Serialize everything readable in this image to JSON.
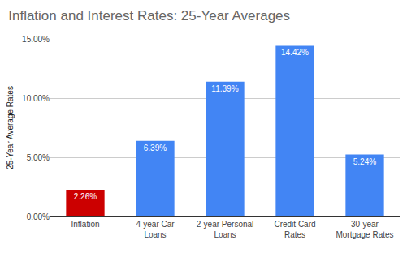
{
  "chart_data": {
    "type": "bar",
    "title": "Inflation and Interest Rates: 25-Year Averages",
    "y_label": "25-Year Average Rates",
    "categories": [
      "Inflation",
      "4-year Car Loans",
      "2-year Personal Loans",
      "Credit Card Rates",
      "30-year Mortgage Rates"
    ],
    "values": [
      2.26,
      6.39,
      11.39,
      14.42,
      5.24
    ],
    "value_labels": [
      "2.26%",
      "6.39%",
      "11.39%",
      "14.42%",
      "5.24%"
    ],
    "colors": [
      "#cc0000",
      "#4285f4",
      "#4285f4",
      "#4285f4",
      "#4285f4"
    ],
    "ylim": [
      0,
      15
    ],
    "yticks": [
      {
        "value": 0,
        "label": "0.00%"
      },
      {
        "value": 5,
        "label": "5.00%"
      },
      {
        "value": 10,
        "label": "10.00%"
      },
      {
        "value": 15,
        "label": "15.00%"
      }
    ],
    "grid": true,
    "data_labels": true
  }
}
